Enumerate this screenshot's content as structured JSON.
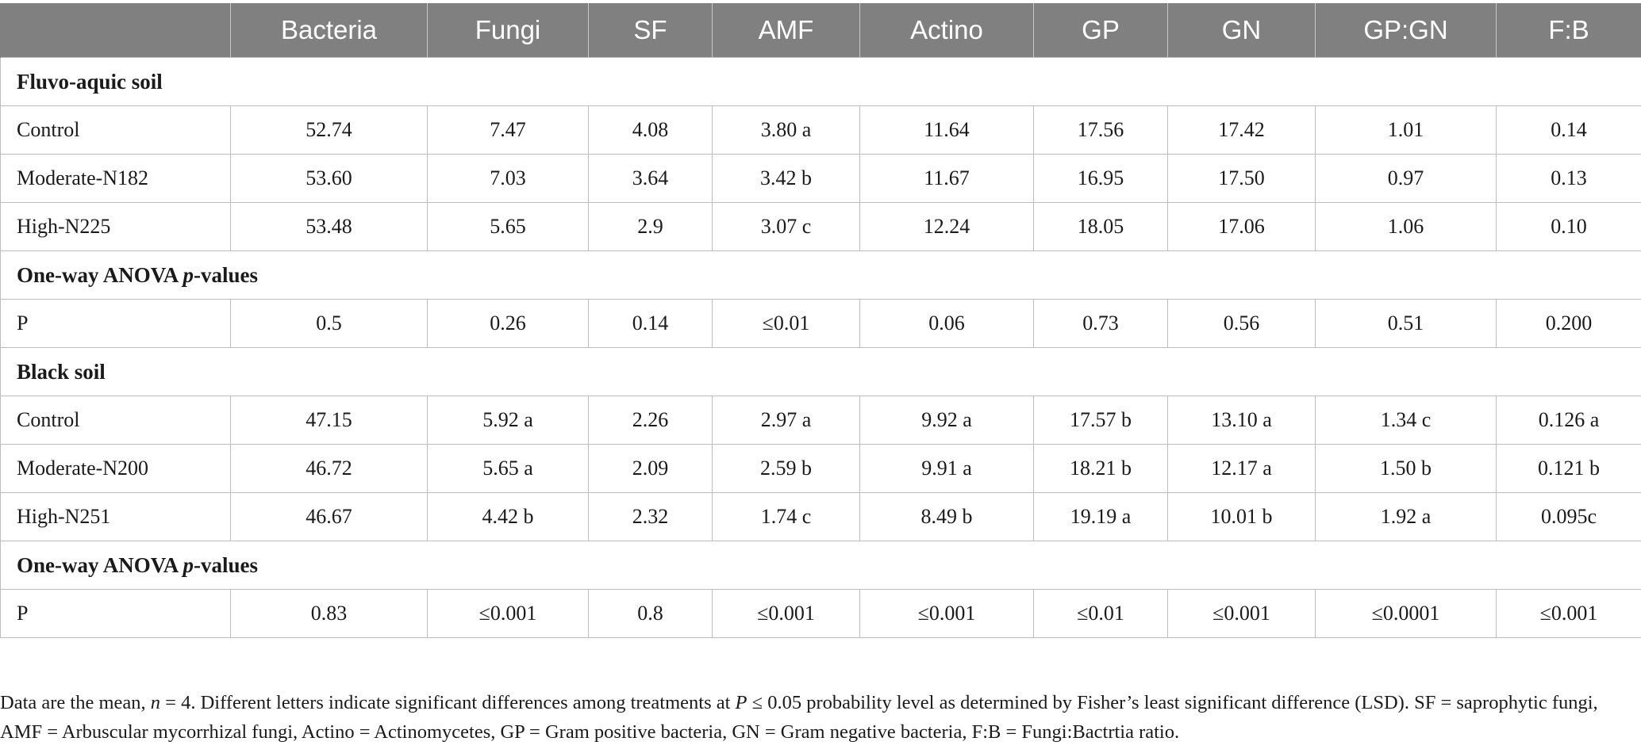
{
  "table": {
    "headers": [
      "",
      "Bacteria",
      "Fungi",
      "SF",
      "AMF",
      "Actino",
      "GP",
      "GN",
      "GP:GN",
      "F:B"
    ],
    "sections": [
      {
        "title": "Fluvo-aquic soil",
        "rows": [
          {
            "label": "Control",
            "cells": [
              "52.74",
              "7.47",
              "4.08",
              "3.80 a",
              "11.64",
              "17.56",
              "17.42",
              "1.01",
              "0.14"
            ]
          },
          {
            "label": "Moderate-N182",
            "cells": [
              "53.60",
              "7.03",
              "3.64",
              "3.42 b",
              "11.67",
              "16.95",
              "17.50",
              "0.97",
              "0.13"
            ]
          },
          {
            "label": "High-N225",
            "cells": [
              "53.48",
              "5.65",
              "2.9",
              "3.07 c",
              "12.24",
              "18.05",
              "17.06",
              "1.06",
              "0.10"
            ]
          }
        ],
        "anova": {
          "title_prefix": "One-way ANOVA ",
          "title_italic": "p",
          "title_suffix": "-values",
          "row": {
            "label": "P",
            "cells": [
              "0.5",
              "0.26",
              "0.14",
              "≤0.01",
              "0.06",
              "0.73",
              "0.56",
              "0.51",
              "0.200"
            ]
          }
        }
      },
      {
        "title": "Black soil",
        "rows": [
          {
            "label": "Control",
            "cells": [
              "47.15",
              "5.92 a",
              "2.26",
              "2.97 a",
              "9.92 a",
              "17.57 b",
              "13.10 a",
              "1.34 c",
              "0.126 a"
            ]
          },
          {
            "label": "Moderate-N200",
            "cells": [
              "46.72",
              "5.65 a",
              "2.09",
              "2.59 b",
              "9.91 a",
              "18.21 b",
              "12.17 a",
              "1.50 b",
              "0.121 b"
            ]
          },
          {
            "label": "High-N251",
            "cells": [
              "46.67",
              "4.42 b",
              "2.32",
              "1.74 c",
              "8.49 b",
              "19.19 a",
              "10.01 b",
              "1.92 a",
              "0.095c"
            ]
          }
        ],
        "anova": {
          "title_prefix": "One-way ANOVA ",
          "title_italic": "p",
          "title_suffix": "-values",
          "row": {
            "label": "P",
            "cells": [
              "0.83",
              "≤0.001",
              "0.8",
              "≤0.001",
              "≤0.001",
              "≤0.01",
              "≤0.001",
              "≤0.0001",
              "≤0.001"
            ]
          }
        }
      }
    ]
  },
  "footnote": {
    "part1": "Data are the mean, ",
    "n_symbol": "n",
    "part2": " = 4. Different letters indicate significant differences among treatments at ",
    "p_symbol": "P",
    "part3": " ≤ 0.05 probability level as determined by Fisher’s least significant difference (LSD). SF = saprophytic fungi, AMF = Arbuscular mycorrhizal fungi, Actino = Actinomycetes, GP = Gram positive bacteria, GN = Gram negative bacteria, F:B = Fungi:Bactrtia ratio."
  },
  "colors": {
    "header_background": "#808080",
    "header_text": "#ffffff",
    "grid_line": "#bdbdbd"
  }
}
